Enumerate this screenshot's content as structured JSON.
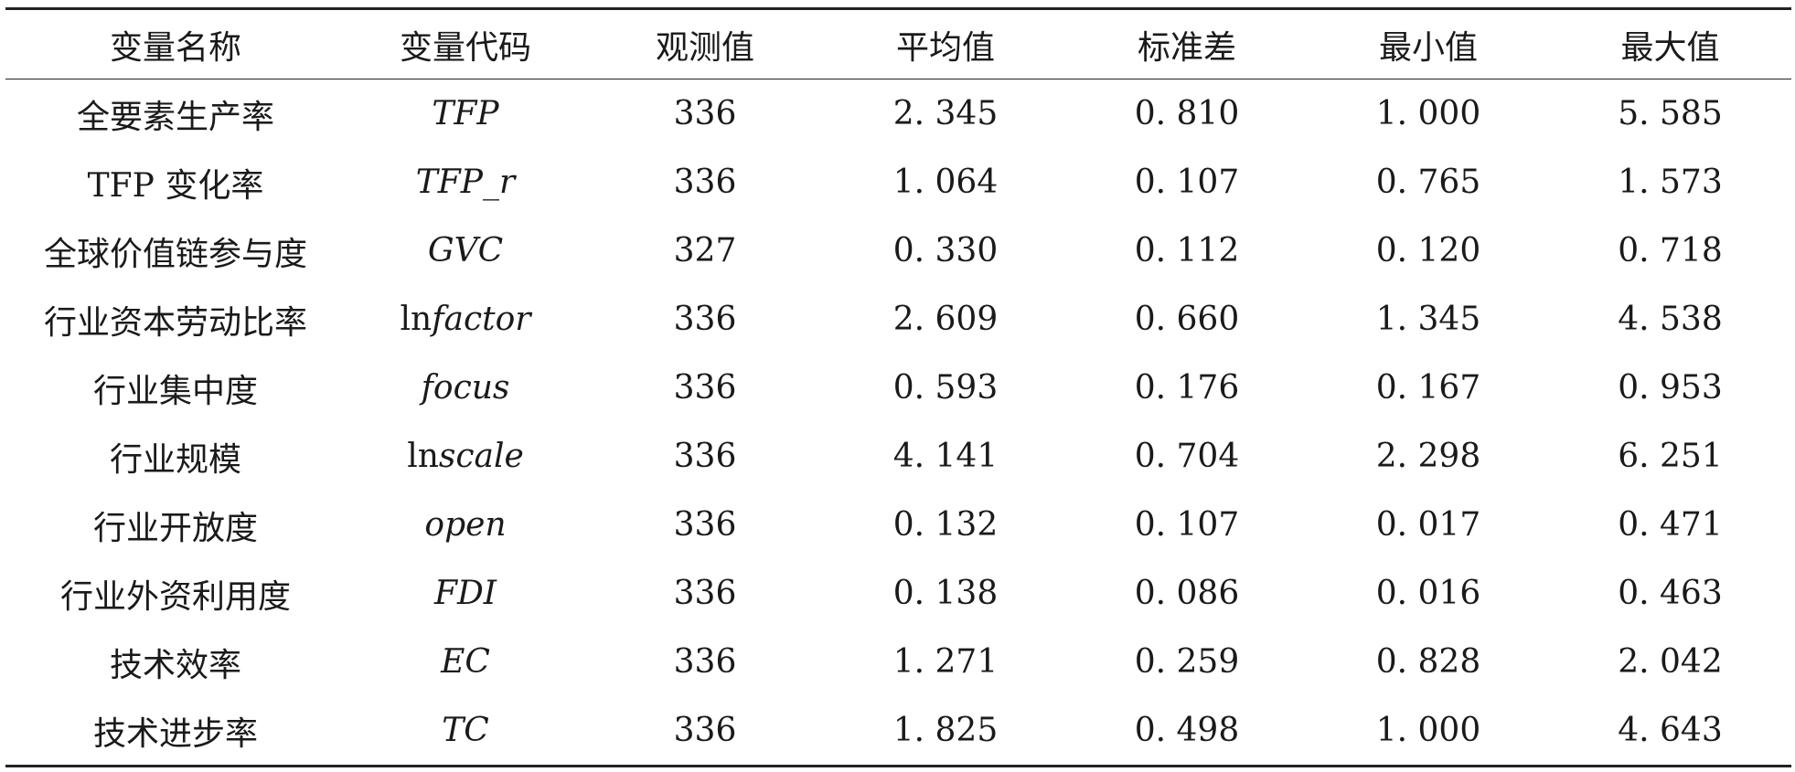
{
  "table": {
    "headers": [
      "变量名称",
      "变量代码",
      "观测值",
      "平均值",
      "标准差",
      "最小值",
      "最大值"
    ],
    "rows": [
      {
        "name": "全要素生产率",
        "code_prefix": "",
        "code": "TFP",
        "n": "336",
        "mean": "2. 345",
        "sd": "0. 810",
        "min": "1. 000",
        "max": "5. 585"
      },
      {
        "name": "TFP 变化率",
        "code_prefix": "",
        "code": "TFP_r",
        "n": "336",
        "mean": "1. 064",
        "sd": "0. 107",
        "min": "0. 765",
        "max": "1. 573"
      },
      {
        "name": "全球价值链参与度",
        "code_prefix": "",
        "code": "GVC",
        "n": "327",
        "mean": "0. 330",
        "sd": "0. 112",
        "min": "0. 120",
        "max": "0. 718"
      },
      {
        "name": "行业资本劳动比率",
        "code_prefix": "ln",
        "code": "factor",
        "n": "336",
        "mean": "2. 609",
        "sd": "0. 660",
        "min": "1. 345",
        "max": "4. 538"
      },
      {
        "name": "行业集中度",
        "code_prefix": "",
        "code": "focus",
        "n": "336",
        "mean": "0. 593",
        "sd": "0. 176",
        "min": "0. 167",
        "max": "0. 953"
      },
      {
        "name": "行业规模",
        "code_prefix": "ln",
        "code": "scale",
        "n": "336",
        "mean": "4. 141",
        "sd": "0. 704",
        "min": "2. 298",
        "max": "6. 251"
      },
      {
        "name": "行业开放度",
        "code_prefix": "",
        "code": "open",
        "n": "336",
        "mean": "0. 132",
        "sd": "0. 107",
        "min": "0. 017",
        "max": "0. 471"
      },
      {
        "name": "行业外资利用度",
        "code_prefix": "",
        "code": "FDI",
        "n": "336",
        "mean": "0. 138",
        "sd": "0. 086",
        "min": "0. 016",
        "max": "0. 463"
      },
      {
        "name": "技术效率",
        "code_prefix": "",
        "code": "EC",
        "n": "336",
        "mean": "1. 271",
        "sd": "0. 259",
        "min": "0. 828",
        "max": "2. 042"
      },
      {
        "name": "技术进步率",
        "code_prefix": "",
        "code": "TC",
        "n": "336",
        "mean": "1. 825",
        "sd": "0. 498",
        "min": "1. 000",
        "max": "4. 643"
      }
    ]
  }
}
